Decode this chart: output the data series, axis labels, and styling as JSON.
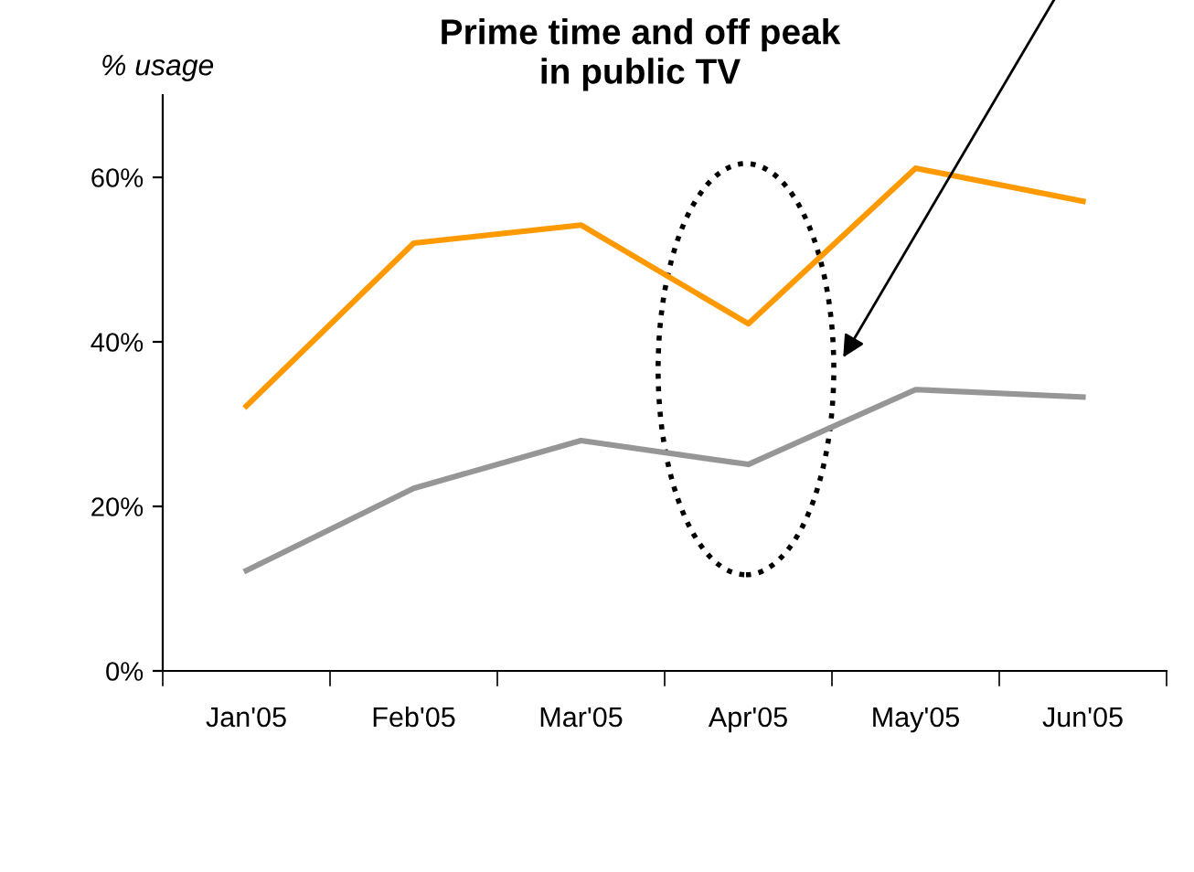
{
  "chart_data": {
    "type": "line",
    "title": "Prime time and off peak\nin public TV",
    "ylabel": "% usage",
    "categories": [
      "Jan'05",
      "Feb'05",
      "Mar'05",
      "Apr'05",
      "May'05",
      "Jun'05"
    ],
    "series": [
      {
        "color": "#ff9900",
        "values": [
          32.2,
          52,
          54.2,
          42.2,
          61.1,
          57.1
        ]
      },
      {
        "color": "#969696",
        "values": [
          12.2,
          22.2,
          28,
          25.1,
          34.2,
          33.3
        ]
      }
    ],
    "ylim": [
      0,
      70
    ],
    "yticks": [
      {
        "value": 0,
        "label": "0%"
      },
      {
        "value": 20,
        "label": "20%"
      },
      {
        "value": 40,
        "label": "40%"
      },
      {
        "value": 60,
        "label": "60%"
      }
    ],
    "grid": false,
    "marker": "none",
    "line_style": "solid"
  }
}
